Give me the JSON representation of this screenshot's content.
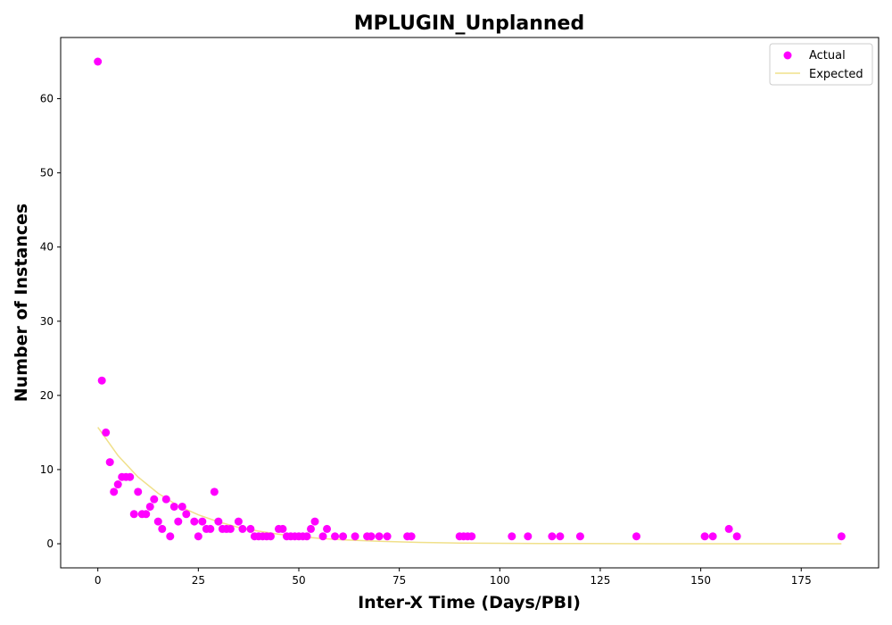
{
  "chart_data": {
    "type": "scatter",
    "title": "MPLUGIN_Unplanned",
    "xlabel": "Inter-X Time (Days/PBI)",
    "ylabel": "Number of Instances",
    "xlim": [
      -9.25,
      194.25
    ],
    "ylim": [
      -3.25,
      68.25
    ],
    "xticks": [
      0,
      25,
      50,
      75,
      100,
      125,
      150,
      175
    ],
    "yticks": [
      0,
      10,
      20,
      30,
      40,
      50,
      60
    ],
    "grid": false,
    "legend_position": "top-right",
    "series": [
      {
        "name": "Actual",
        "kind": "scatter",
        "color": "#ff00ff",
        "x": [
          0,
          1,
          2,
          3,
          4,
          5,
          6,
          7,
          8,
          9,
          10,
          11,
          12,
          13,
          14,
          15,
          16,
          17,
          18,
          19,
          20,
          21,
          22,
          24,
          25,
          26,
          27,
          28,
          29,
          30,
          31,
          32,
          33,
          35,
          36,
          38,
          39,
          40,
          41,
          42,
          43,
          45,
          46,
          47,
          48,
          49,
          50,
          51,
          52,
          53,
          54,
          56,
          57,
          59,
          61,
          64,
          67,
          68,
          70,
          72,
          77,
          78,
          90,
          91,
          92,
          93,
          103,
          107,
          113,
          115,
          120,
          134,
          151,
          153,
          157,
          159,
          185
        ],
        "y": [
          65,
          22,
          15,
          11,
          7,
          8,
          9,
          9,
          9,
          4,
          7,
          4,
          4,
          5,
          6,
          3,
          2,
          6,
          1,
          5,
          3,
          5,
          4,
          3,
          1,
          3,
          2,
          2,
          7,
          3,
          2,
          2,
          2,
          3,
          2,
          2,
          1,
          1,
          1,
          1,
          1,
          2,
          2,
          1,
          1,
          1,
          1,
          1,
          1,
          2,
          3,
          1,
          2,
          1,
          1,
          1,
          1,
          1,
          1,
          1,
          1,
          1,
          1,
          1,
          1,
          1,
          1,
          1,
          1,
          1,
          1,
          1,
          1,
          1,
          2,
          1,
          1
        ]
      },
      {
        "name": "Expected",
        "kind": "line",
        "color": "#f0e08a",
        "x": [
          0,
          5,
          10,
          15,
          20,
          25,
          30,
          35,
          40,
          45,
          50,
          55,
          60,
          70,
          80,
          90,
          100,
          110,
          120,
          130,
          140,
          150,
          160,
          170,
          180,
          185
        ],
        "y": [
          15.7,
          11.9,
          9.0,
          6.8,
          5.1,
          3.9,
          2.95,
          2.2,
          1.7,
          1.28,
          0.97,
          0.73,
          0.55,
          0.32,
          0.18,
          0.1,
          0.06,
          0.03,
          0.02,
          0.01,
          0.0,
          0.0,
          0.0,
          0.0,
          0.0,
          0.0
        ]
      }
    ]
  }
}
